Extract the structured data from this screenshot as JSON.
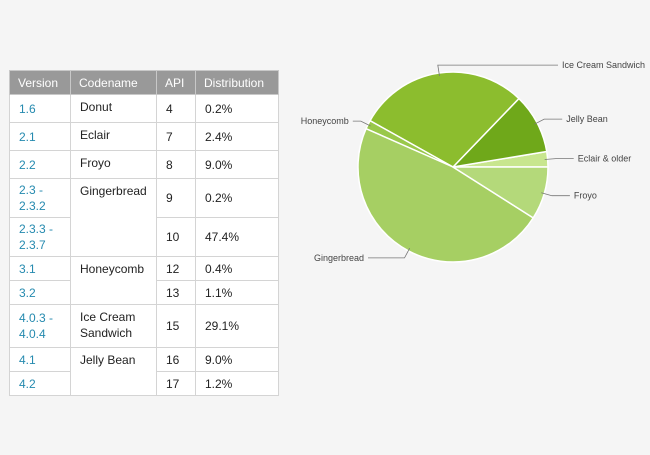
{
  "table": {
    "headers": [
      "Version",
      "Codename",
      "API",
      "Distribution"
    ],
    "rows": [
      {
        "version": "1.6",
        "codename": "Donut",
        "api": "4",
        "distribution": "0.2%"
      },
      {
        "version": "2.1",
        "codename": "Eclair",
        "api": "7",
        "distribution": "2.4%"
      },
      {
        "version": "2.2",
        "codename": "Froyo",
        "api": "8",
        "distribution": "9.0%"
      },
      {
        "version": "2.3 -\n2.3.2",
        "codename": "Gingerbread",
        "api": "9",
        "distribution": "0.2%"
      },
      {
        "version": "2.3.3 -\n2.3.7",
        "codename": "",
        "api": "10",
        "distribution": "47.4%"
      },
      {
        "version": "3.1",
        "codename": "Honeycomb",
        "api": "12",
        "distribution": "0.4%"
      },
      {
        "version": "3.2",
        "codename": "",
        "api": "13",
        "distribution": "1.1%"
      },
      {
        "version": "4.0.3 -\n4.0.4",
        "codename": "Ice Cream\nSandwich",
        "api": "15",
        "distribution": "29.1%"
      },
      {
        "version": "4.1",
        "codename": "Jelly Bean",
        "api": "16",
        "distribution": "9.0%"
      },
      {
        "version": "4.2",
        "codename": "",
        "api": "17",
        "distribution": "1.2%"
      }
    ]
  },
  "chart_data": {
    "type": "pie",
    "title": "",
    "start_angle_deg": 0,
    "direction": "counterclockwise",
    "slices": [
      {
        "label": "Eclair & older",
        "value": 2.6,
        "color": "#c8e68e",
        "label_side": "right"
      },
      {
        "label": "Jelly Bean",
        "value": 10.2,
        "color": "#6fa81a",
        "label_side": "right"
      },
      {
        "label": "Ice Cream Sandwich",
        "value": 29.1,
        "color": "#8cbd2e",
        "label_side": "right"
      },
      {
        "label": "Honeycomb",
        "value": 1.5,
        "color": "#99c84a",
        "label_side": "left"
      },
      {
        "label": "Gingerbread",
        "value": 47.6,
        "color": "#a6cf63",
        "label_side": "left"
      },
      {
        "label": "Froyo",
        "value": 9.0,
        "color": "#b4d97a",
        "label_side": "right"
      }
    ],
    "slice_border_color": "#ffffff",
    "leader_line_color": "#777777",
    "label_color": "#444444"
  }
}
